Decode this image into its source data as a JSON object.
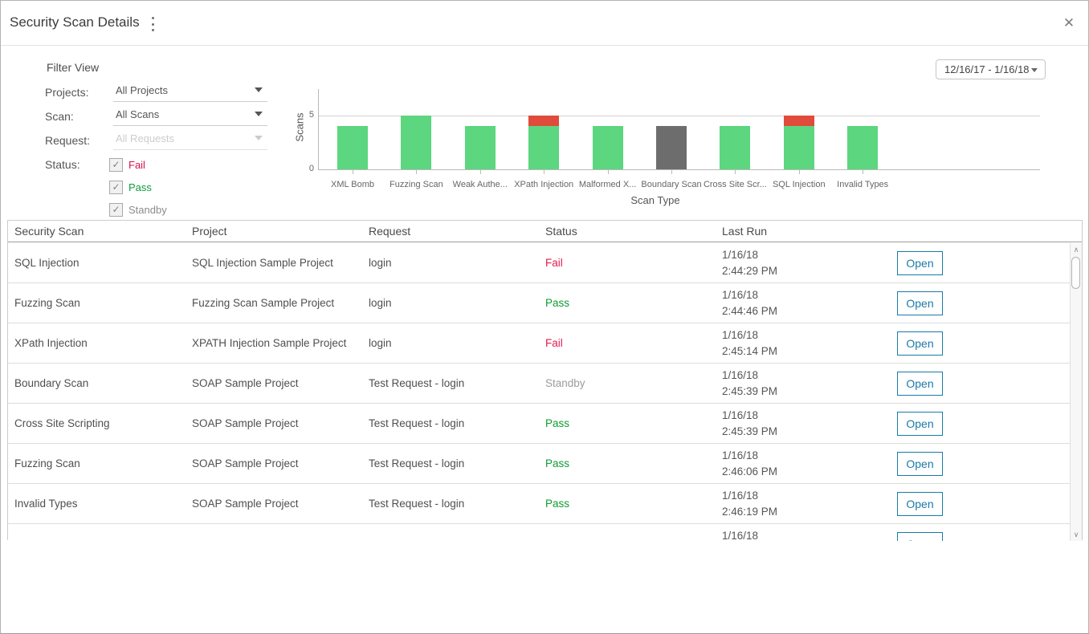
{
  "header": {
    "title": "Security Scan Details"
  },
  "filters": {
    "title": "Filter View",
    "projects_label": "Projects:",
    "projects_value": "All Projects",
    "scan_label": "Scan:",
    "scan_value": "All Scans",
    "request_label": "Request:",
    "request_value": "All Requests",
    "request_disabled": true,
    "status_label": "Status:",
    "status_options": [
      {
        "label": "Fail",
        "checked": true,
        "color": "#d8134c"
      },
      {
        "label": "Pass",
        "checked": true,
        "color": "#0f9d3f"
      },
      {
        "label": "Standby",
        "checked": true,
        "color": "#8b8b8b"
      }
    ],
    "check_glyph": "✓"
  },
  "date_range": {
    "value": "12/16/17 - 1/16/18"
  },
  "chart_data": {
    "type": "bar",
    "stacked": true,
    "title": "",
    "xlabel": "Scan Type",
    "ylabel": "Scans",
    "categories": [
      "XML Bomb",
      "Fuzzing Scan",
      "Weak Authe...",
      "XPath Injection",
      "Malformed X...",
      "Boundary Scan",
      "Cross Site Scr...",
      "SQL Injection",
      "Invalid Types"
    ],
    "series": [
      {
        "name": "Pass",
        "color": "#5cd67f",
        "values": [
          4,
          5,
          4,
          4,
          4,
          0,
          4,
          4,
          4
        ]
      },
      {
        "name": "Fail",
        "color": "#e04b3b",
        "values": [
          0,
          0,
          0,
          1,
          0,
          0,
          0,
          1,
          0
        ]
      },
      {
        "name": "Standby",
        "color": "#6d6d6d",
        "values": [
          0,
          0,
          0,
          0,
          0,
          4,
          0,
          0,
          0
        ]
      }
    ],
    "yticks": [
      0,
      5
    ],
    "ylim": [
      0,
      7.5
    ],
    "grid": "horizontal-at-5",
    "legend": "none"
  },
  "table": {
    "columns": [
      "Security Scan",
      "Project",
      "Request",
      "Status",
      "Last Run"
    ],
    "open_label": "Open",
    "status_colors": {
      "Fail": "#e31b4c",
      "Pass": "#0e9b30",
      "Standby": "#9b9b9b"
    },
    "rows": [
      {
        "security_scan": "SQL Injection",
        "project": "SQL Injection Sample Project",
        "request": "login",
        "status": "Fail",
        "last_run_date": "1/16/18",
        "last_run_time": "2:44:29 PM",
        "has_open": true
      },
      {
        "security_scan": "Fuzzing Scan",
        "project": "Fuzzing Scan Sample Project",
        "request": "login",
        "status": "Pass",
        "last_run_date": "1/16/18",
        "last_run_time": "2:44:46 PM",
        "has_open": true
      },
      {
        "security_scan": "XPath Injection",
        "project": "XPATH Injection Sample Project",
        "request": "login",
        "status": "Fail",
        "last_run_date": "1/16/18",
        "last_run_time": "2:45:14 PM",
        "has_open": true
      },
      {
        "security_scan": "Boundary Scan",
        "project": "SOAP Sample Project",
        "request": "Test Request - login",
        "status": "Standby",
        "last_run_date": "1/16/18",
        "last_run_time": "2:45:39 PM",
        "has_open": true
      },
      {
        "security_scan": "Cross Site Scripting",
        "project": "SOAP Sample Project",
        "request": "Test Request - login",
        "status": "Pass",
        "last_run_date": "1/16/18",
        "last_run_time": "2:45:39 PM",
        "has_open": true
      },
      {
        "security_scan": "Fuzzing Scan",
        "project": "SOAP Sample Project",
        "request": "Test Request - login",
        "status": "Pass",
        "last_run_date": "1/16/18",
        "last_run_time": "2:46:06 PM",
        "has_open": true
      },
      {
        "security_scan": "Invalid Types",
        "project": "SOAP Sample Project",
        "request": "Test Request - login",
        "status": "Pass",
        "last_run_date": "1/16/18",
        "last_run_time": "2:46:19 PM",
        "has_open": true
      },
      {
        "security_scan": "",
        "project": "",
        "request": "",
        "status": "",
        "last_run_date": "1/16/18",
        "last_run_time": "",
        "has_open": true
      }
    ]
  }
}
